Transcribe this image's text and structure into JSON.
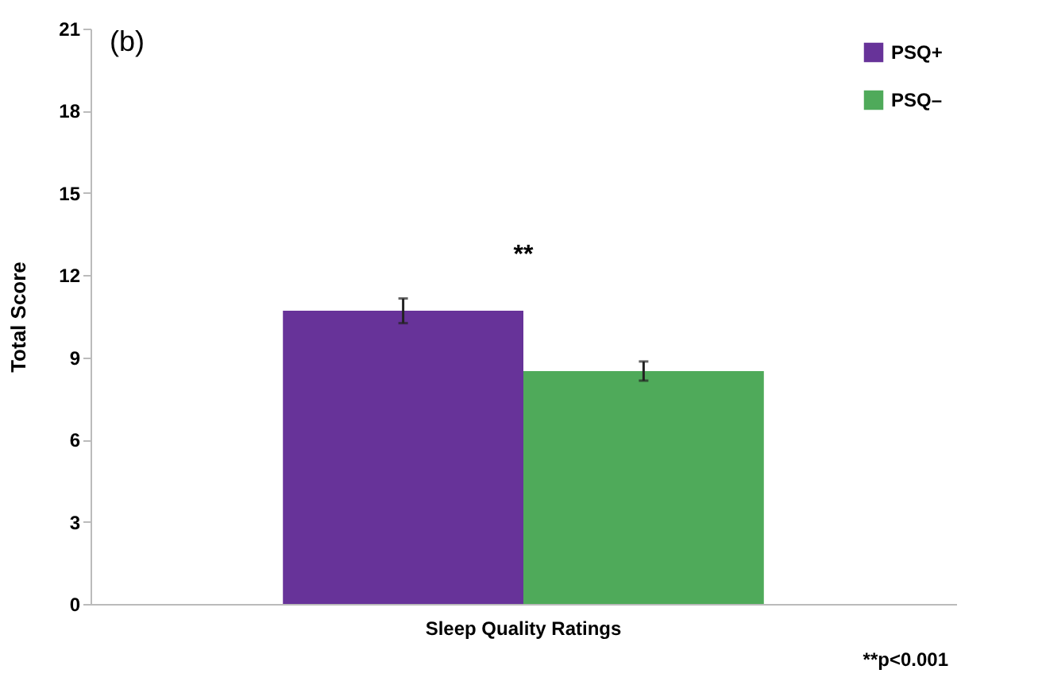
{
  "chart_data": {
    "type": "bar",
    "ylabel": "Total Score",
    "categories": [
      "Sleep Quality Ratings"
    ],
    "series": [
      {
        "name": "PSQ+",
        "color": "#673399",
        "values": [
          10.7
        ],
        "errors": [
          0.45
        ]
      },
      {
        "name": "PSQ–",
        "color": "#4faa5a",
        "values": [
          8.5
        ],
        "errors": [
          0.35
        ]
      }
    ],
    "ylim": [
      0,
      21
    ],
    "yticks": [
      0,
      3,
      6,
      9,
      12,
      15,
      18,
      21
    ],
    "grid": false,
    "legend": "top right",
    "annotations": [
      "(b)",
      "**",
      "**p<0.001"
    ]
  }
}
